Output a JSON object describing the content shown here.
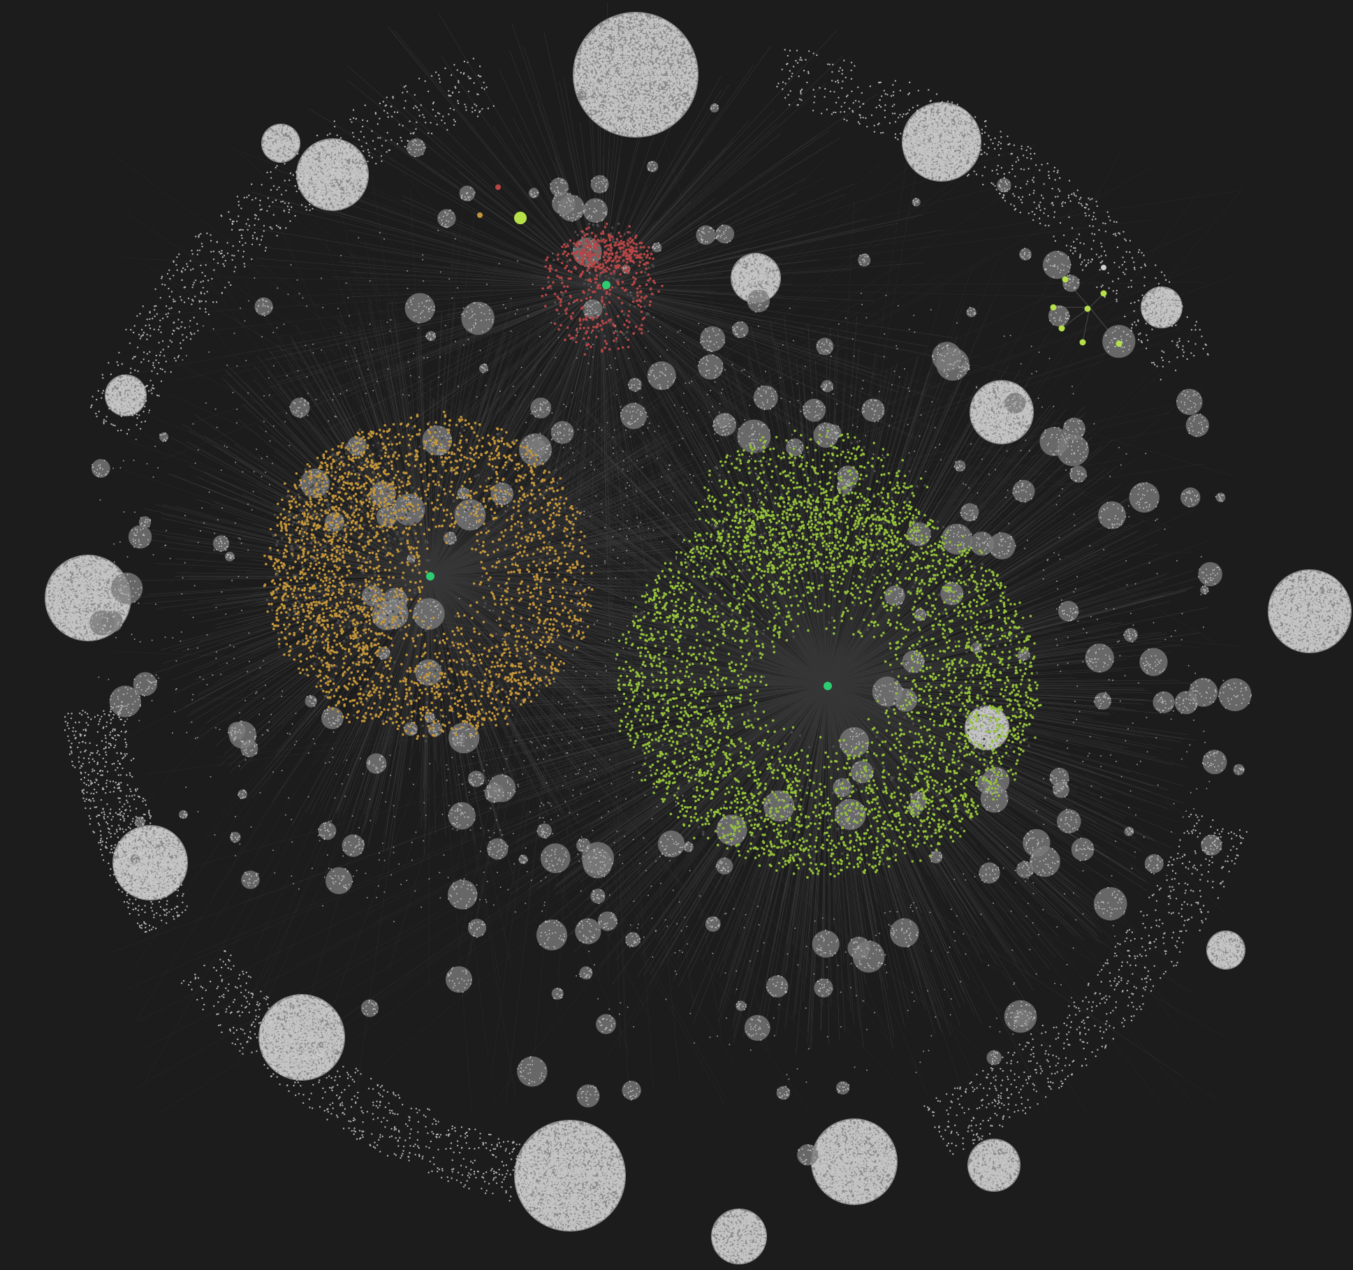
{
  "view": {
    "kind": "graph-view",
    "background": "#1c1c1d"
  },
  "palette": {
    "edge": "#4a4a4b",
    "edge_dense": "#3a3a3b",
    "node_default": "#c4c4c4",
    "node_dim": "#8a8a8a",
    "group_orange": "#c4963a",
    "group_green": "#94c13a",
    "group_red": "#b84646",
    "group_lime": "#b6e04a",
    "highlight": "#2ecc71"
  },
  "groups": [
    {
      "name": "orange",
      "color": "#c4963a"
    },
    {
      "name": "green",
      "color": "#94c13a"
    },
    {
      "name": "red",
      "color": "#b84646"
    },
    {
      "name": "lime",
      "color": "#b6e04a"
    }
  ],
  "hub_count": 4,
  "satellite_disc_count": 15
}
